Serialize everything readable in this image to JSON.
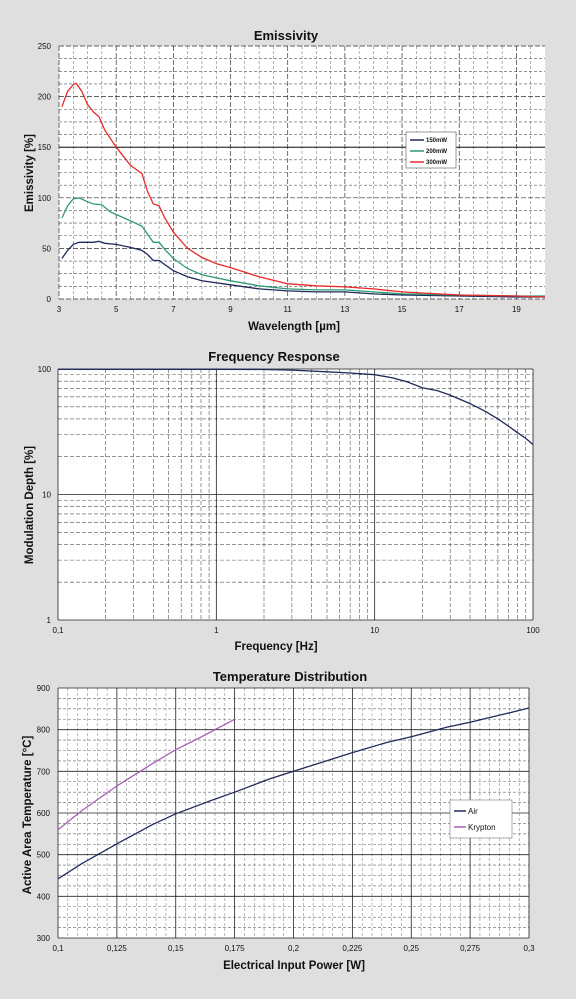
{
  "chart_data": [
    {
      "type": "line",
      "title": "Emissivity",
      "xlabel": "Wavelength [µm]",
      "ylabel": "Emissivity [%]",
      "xlim": [
        3,
        20
      ],
      "ylim": [
        0,
        250
      ],
      "x_ticks": [
        "3",
        "5",
        "7",
        "9",
        "11",
        "13",
        "15",
        "17",
        "19"
      ],
      "y_ticks": [
        "0",
        "50",
        "100",
        "150",
        "200",
        "250"
      ],
      "grid": "on",
      "legend_position": "right",
      "reference_line_y": 150,
      "series": [
        {
          "name": "150mW",
          "color": "#1f2a5c",
          "x": [
            3.1,
            3.3,
            3.5,
            3.7,
            4.0,
            4.2,
            4.4,
            4.6,
            5.0,
            5.5,
            5.9,
            6.1,
            6.3,
            6.5,
            6.7,
            7.0,
            7.5,
            8.0,
            9.0,
            10.0,
            11.0,
            12.0,
            13.0,
            14.0,
            15.0,
            17.0,
            19.0,
            20.0
          ],
          "y": [
            40,
            48,
            54,
            56,
            56,
            56,
            57,
            55,
            54,
            51,
            48,
            44,
            38,
            38,
            34,
            28,
            22,
            18,
            14,
            10,
            8,
            7,
            7,
            5,
            4,
            3,
            2,
            2
          ]
        },
        {
          "name": "200mW",
          "color": "#2e9a73",
          "x": [
            3.1,
            3.3,
            3.5,
            3.7,
            4.0,
            4.2,
            4.5,
            4.8,
            5.2,
            5.6,
            5.9,
            6.1,
            6.3,
            6.5,
            6.7,
            7.0,
            7.5,
            8.0,
            9.0,
            10.0,
            11.0,
            12.0,
            13.0,
            14.0,
            15.0,
            17.0,
            19.0,
            20.0
          ],
          "y": [
            80,
            92,
            99,
            100,
            96,
            94,
            93,
            86,
            81,
            76,
            72,
            64,
            56,
            56,
            49,
            40,
            30,
            24,
            18,
            13,
            10,
            9,
            9,
            7,
            5,
            4,
            3,
            3
          ]
        },
        {
          "name": "300mW",
          "color": "#e82a2a",
          "x": [
            3.1,
            3.3,
            3.5,
            3.6,
            3.8,
            4.0,
            4.2,
            4.4,
            4.6,
            5.0,
            5.5,
            5.9,
            6.1,
            6.3,
            6.5,
            6.7,
            7.0,
            7.5,
            8.0,
            8.5,
            9.0,
            10.0,
            11.0,
            12.0,
            13.0,
            14.0,
            15.0,
            17.0,
            19.0,
            20.0
          ],
          "y": [
            190,
            205,
            212,
            213,
            205,
            192,
            185,
            180,
            167,
            150,
            132,
            124,
            106,
            94,
            92,
            80,
            66,
            50,
            41,
            35,
            31,
            22,
            15,
            13,
            12,
            10,
            7,
            4,
            3,
            2
          ]
        }
      ]
    },
    {
      "type": "line",
      "title": "Frequency Response",
      "xlabel": "Frequency [Hz]",
      "ylabel": "Modulation Depth [%]",
      "xscale": "log",
      "yscale": "log",
      "xlim": [
        0.1,
        100
      ],
      "ylim": [
        1,
        100
      ],
      "x_ticks": [
        "0,1",
        "1",
        "10",
        "100"
      ],
      "y_ticks": [
        "1",
        "10",
        "100"
      ],
      "grid": "on",
      "series": [
        {
          "color": "#1f2a5c",
          "x": [
            0.1,
            0.2,
            0.5,
            1,
            2,
            3,
            5,
            7,
            10,
            13,
            16,
            20,
            25,
            30,
            40,
            50,
            60,
            70,
            80,
            90,
            100
          ],
          "y": [
            99.5,
            99.5,
            99.5,
            99.4,
            99,
            98,
            95,
            93,
            90,
            85,
            79,
            71,
            67,
            62,
            53,
            46,
            40,
            35,
            31,
            28,
            25
          ]
        }
      ]
    },
    {
      "type": "line",
      "title": "Temperature Distribution",
      "xlabel": "Electrical Input Power [W]",
      "ylabel": "Active Area Temperature [°C]",
      "xlim": [
        0.1,
        0.3
      ],
      "ylim": [
        300,
        900
      ],
      "x_ticks": [
        "0,1",
        "0,125",
        "0,15",
        "0,175",
        "0,2",
        "0,225",
        "0,25",
        "0,275",
        "0,3"
      ],
      "y_ticks": [
        "300",
        "400",
        "500",
        "600",
        "700",
        "800",
        "900"
      ],
      "grid": "on",
      "legend_position": "right",
      "series": [
        {
          "name": "Air",
          "color": "#1f2a5c",
          "x": [
            0.1,
            0.11,
            0.125,
            0.14,
            0.15,
            0.165,
            0.175,
            0.19,
            0.2,
            0.215,
            0.225,
            0.24,
            0.25,
            0.265,
            0.275,
            0.29,
            0.3
          ],
          "y": [
            442,
            478,
            526,
            572,
            598,
            630,
            650,
            682,
            700,
            727,
            745,
            770,
            783,
            806,
            818,
            838,
            852
          ]
        },
        {
          "name": "Krypton",
          "color": "#a860b8",
          "x": [
            0.1,
            0.11,
            0.125,
            0.14,
            0.15,
            0.16,
            0.175
          ],
          "y": [
            560,
            605,
            665,
            718,
            752,
            780,
            825
          ]
        }
      ]
    }
  ]
}
